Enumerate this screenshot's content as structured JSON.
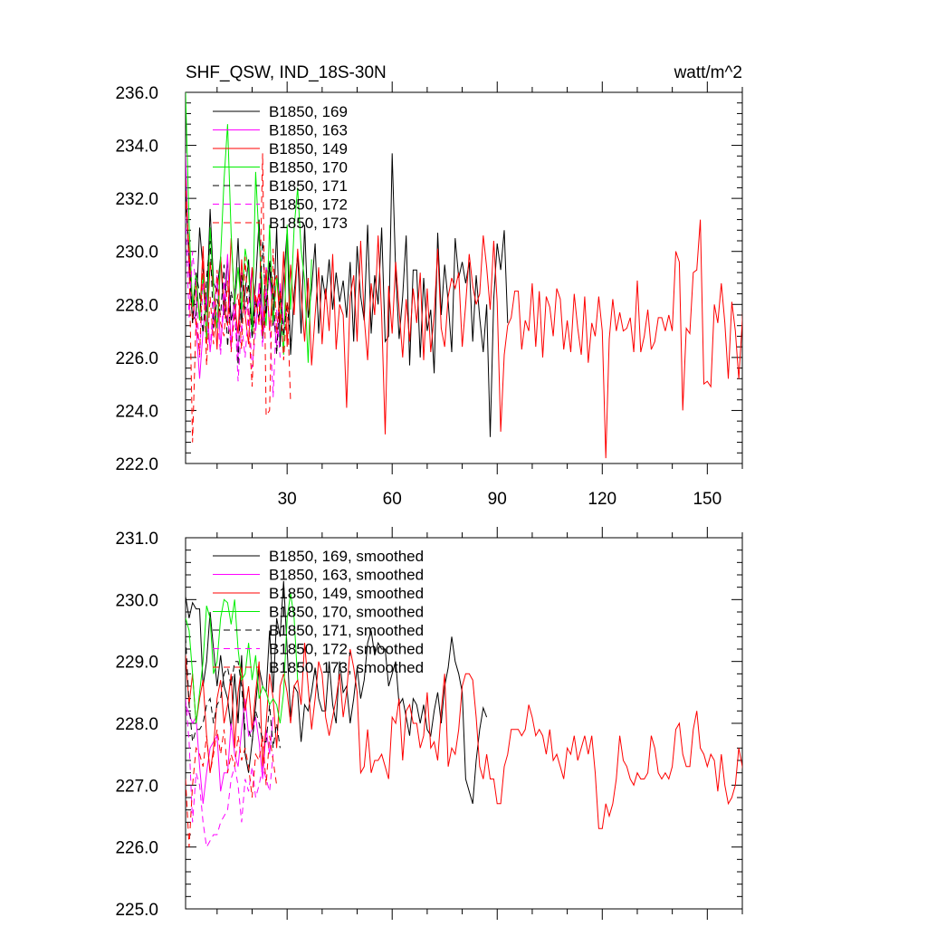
{
  "header": {
    "title": "SHF_QSW, IND_18S-30N",
    "units": "watt/m^2"
  },
  "colors": {
    "169": "#000000",
    "163": "#ff00ff",
    "149": "#ff0000",
    "170": "#00ee00",
    "171": "#000000",
    "172": "#ff00ff",
    "173": "#ff0000"
  },
  "chart_data": [
    {
      "type": "line",
      "title": "SHF_QSW, IND_18S-30N",
      "units": "watt/m^2",
      "xlabel": "",
      "ylabel": "",
      "xlim": [
        1,
        160
      ],
      "ylim": [
        222.0,
        236.0
      ],
      "x_ticks": [
        30,
        60,
        90,
        120,
        150
      ],
      "y_ticks": [
        222.0,
        224.0,
        226.0,
        228.0,
        230.0,
        232.0,
        234.0,
        236.0
      ],
      "y_tick_labels": [
        "222.0",
        "224.0",
        "226.0",
        "228.0",
        "230.0",
        "232.0",
        "234.0",
        "236.0"
      ],
      "grid": false,
      "legend": "top-left",
      "series": [
        {
          "name": "B1850, 169",
          "key": "169",
          "dash": false,
          "values": [
            232.4,
            229.5,
            227.4,
            227.6,
            230.9,
            229.3,
            227.7,
            231.6,
            228.8,
            228.5,
            229.8,
            227.6,
            229.7,
            227.4,
            228.0,
            230.5,
            227.3,
            228.5,
            229.7,
            226.9,
            228.8,
            231.2,
            226.7,
            228.0,
            229.5,
            227.2,
            230.9,
            226.4,
            228.9,
            230.8,
            226.1,
            228.4,
            229.9,
            226.9,
            231.0,
            227.5,
            228.6,
            230.3,
            226.9,
            229.1,
            228.2,
            229.7,
            227.8,
            229.2,
            228.1,
            228.9,
            227.5,
            229.6,
            226.6,
            230.2,
            228.3,
            227.4,
            231.0,
            226.9,
            229.1,
            228.0,
            230.9,
            226.6,
            226.8,
            233.7,
            229.2,
            226.7,
            228.3,
            230.6,
            225.7,
            229.3,
            229.3,
            226.0,
            229.0,
            227.0,
            227.8,
            225.4,
            230.7,
            227.6,
            229.5,
            228.1,
            226.2,
            230.5,
            229.0,
            229.6,
            228.8,
            229.6,
            226.6,
            229.1,
            227.5,
            226.2,
            228.0,
            223.0,
            228.2,
            230.3,
            229.3,
            230.8,
            227.3
          ]
        },
        {
          "name": "B1850, 163",
          "key": "163",
          "dash": false,
          "values": [
            233.7,
            229.1,
            228.3,
            227.2,
            225.2,
            227.0,
            228.3,
            226.2,
            227.5,
            229.1,
            226.4,
            228.0,
            229.9,
            226.3,
            228.6,
            226.0,
            229.2,
            227.6,
            228.1,
            229.4,
            227.0,
            228.8,
            227.4,
            229.4,
            228.9,
            227.8,
            226.4,
            228.8,
            227.2,
            228.0
          ]
        },
        {
          "name": "B1850, 149",
          "key": "149",
          "dash": false,
          "values": [
            232.0,
            230.1,
            227.3,
            228.9,
            227.4,
            230.2,
            226.5,
            229.6,
            228.5,
            226.3,
            229.8,
            228.0,
            227.2,
            230.5,
            228.0,
            226.9,
            229.7,
            227.6,
            226.5,
            229.4,
            227.9,
            228.4,
            226.8,
            229.3,
            227.0,
            228.7,
            229.1,
            227.3,
            230.0,
            226.4,
            229.5,
            227.6,
            230.1,
            228.4,
            226.6,
            229.0,
            225.7,
            227.6,
            229.4,
            226.5,
            228.6,
            227.0,
            229.9,
            226.3,
            228.0,
            227.6,
            224.1,
            228.3,
            229.1,
            226.6,
            230.4,
            227.5,
            225.9,
            228.8,
            227.6,
            230.6,
            227.6,
            223.1,
            228.7,
            226.9,
            229.6,
            227.8,
            226.0,
            228.2,
            226.6,
            228.6,
            227.3,
            229.2,
            225.9,
            228.6,
            226.2,
            227.6,
            230.1,
            227.1,
            226.4,
            228.3,
            229.0,
            228.6,
            229.2,
            226.4,
            228.0,
            229.9,
            228.7,
            228.0,
            228.4,
            230.6,
            229.4,
            227.8,
            230.4,
            228.1,
            223.2,
            226.1,
            227.2,
            227.5,
            228.5,
            228.5,
            226.3,
            227.4,
            227.0,
            228.8,
            226.4,
            228.5,
            226.0,
            228.3,
            227.9,
            226.8,
            228.6,
            228.2,
            226.3,
            227.4,
            226.2,
            228.4,
            227.1,
            226.1,
            228.3,
            225.8,
            227.3,
            226.8,
            228.3,
            227.0,
            222.2,
            226.7,
            228.2,
            227.0,
            227.7,
            227.0,
            227.1,
            227.5,
            226.2,
            228.9,
            226.2,
            226.8,
            227.8,
            226.3,
            226.6,
            227.5,
            227.5,
            227.0,
            227.6,
            227.0,
            230.0,
            229.6,
            224.0,
            227.1,
            226.9,
            229.2,
            229.3,
            231.2,
            225.0,
            225.1,
            224.9,
            228.0,
            227.3,
            228.8,
            227.3,
            225.2,
            228.1,
            227.0,
            225.2,
            227.4,
            230.0,
            226.4,
            224.7,
            228.4
          ]
        },
        {
          "name": "B1850, 170",
          "key": "170",
          "dash": false,
          "values": [
            236.0,
            231.0,
            227.9,
            229.2,
            227.4,
            229.1,
            226.7,
            230.9,
            228.5,
            227.1,
            229.8,
            232.7,
            234.8,
            230.7,
            228.0,
            229.4,
            227.8,
            230.1,
            229.3,
            226.8,
            233.0,
            230.4,
            228.5,
            227.2,
            231.0,
            227.3,
            229.0,
            228.1,
            226.1,
            231.0,
            227.8,
            230.9,
            232.4,
            230.1,
            228.9,
            225.8,
            229.7
          ]
        },
        {
          "name": "B1850, 171",
          "key": "171",
          "dash": true,
          "values": [
            232.4,
            229.8,
            227.3,
            229.2,
            228.4,
            226.9,
            229.0,
            230.4,
            227.1,
            228.2,
            227.6,
            229.5,
            226.4,
            228.5,
            227.8,
            225.7,
            229.1,
            227.8,
            228.8,
            226.7,
            228.2,
            227.4,
            230.4,
            227.6,
            229.7,
            228.4,
            226.1,
            228.5,
            226.8,
            228.1,
            226.6
          ]
        },
        {
          "name": "B1850, 172",
          "key": "172",
          "dash": true,
          "values": [
            231.3,
            227.5,
            230.0,
            228.6,
            226.0,
            228.8,
            227.3,
            226.3,
            228.2,
            227.6,
            226.1,
            228.9,
            227.4,
            226.5,
            228.0,
            225.1,
            227.3,
            226.0,
            227.9,
            225.6,
            227.0,
            228.3,
            226.4,
            228.6,
            227.4,
            224.5,
            227.8,
            226.0
          ]
        },
        {
          "name": "B1850, 173",
          "key": "173",
          "dash": true,
          "values": [
            232.7,
            229.5,
            222.8,
            227.5,
            226.1,
            229.9,
            225.7,
            228.3,
            226.5,
            229.3,
            227.3,
            226.8,
            228.9,
            226.2,
            227.7,
            228.4,
            226.3,
            229.8,
            227.3,
            224.9,
            228.4,
            227.2,
            233.7,
            223.8,
            224.0,
            230.1,
            226.9,
            228.5,
            225.9,
            228.1,
            224.3
          ]
        }
      ]
    },
    {
      "type": "line",
      "title": "",
      "xlabel": "",
      "ylabel": "",
      "xlim": [
        1,
        160
      ],
      "ylim": [
        225.0,
        231.0
      ],
      "x_ticks": [
        30,
        60,
        90,
        120,
        150
      ],
      "y_ticks": [
        225.0,
        226.0,
        227.0,
        228.0,
        229.0,
        230.0,
        231.0
      ],
      "y_tick_labels": [
        "225.0",
        "226.0",
        "227.0",
        "228.0",
        "229.0",
        "230.0",
        "231.0"
      ],
      "grid": false,
      "legend": "top-left",
      "series": [
        {
          "name": "B1850, 169, smoothed",
          "key": "169",
          "dash": false,
          "values": [
            230.05,
            229.7,
            229.95,
            229.85,
            229.85,
            228.6,
            229.0,
            229.8,
            229.2,
            228.6,
            229.1,
            228.6,
            228.4,
            227.9,
            228.8,
            228.0,
            229.1,
            227.5,
            227.2,
            227.7,
            228.3,
            228.9,
            228.6,
            228.5,
            229.5,
            228.5,
            229.7,
            229.4,
            230.3,
            229.2,
            228.1,
            228.6,
            228.5,
            227.7,
            228.3,
            228.2,
            228.5,
            228.9,
            228.4,
            228.2,
            228.2,
            229.0,
            228.3,
            228.0,
            229.0,
            228.5,
            228.6,
            228.0,
            228.4,
            228.9,
            228.4,
            228.7,
            229.3,
            229.5,
            229.1,
            229.3,
            229.2,
            229.2,
            228.6,
            228.8,
            229.0,
            228.3,
            228.4,
            228.1,
            227.8,
            228.4,
            228.3,
            228.0,
            228.3,
            227.9,
            227.8,
            228.2,
            228.5,
            228.0,
            228.6,
            228.9,
            229.4,
            229.0,
            228.8,
            228.5,
            227.1,
            226.9,
            226.7,
            227.4,
            227.9,
            228.25,
            228.1
          ]
        },
        {
          "name": "B1850, 163, smoothed",
          "key": "163",
          "dash": false,
          "values": [
            228.3,
            228.15,
            228.0,
            228.1,
            227.3,
            226.7,
            227.2,
            227.6,
            227.7,
            227.8,
            226.9,
            227.2,
            227.2,
            228.0,
            227.5,
            227.3,
            227.9,
            228.4,
            227.8,
            227.9,
            228.1,
            227.7,
            227.1,
            227.9,
            227.5,
            228.1
          ]
        },
        {
          "name": "B1850, 149, smoothed",
          "key": "149",
          "dash": false,
          "values": [
            229.1,
            228.3,
            228.8,
            228.0,
            228.4,
            228.7,
            227.8,
            227.2,
            227.6,
            228.4,
            228.7,
            228.0,
            228.3,
            228.8,
            227.6,
            228.5,
            228.9,
            228.2,
            228.6,
            227.9,
            228.5,
            229.0,
            227.3,
            228.0,
            228.8,
            228.4,
            227.6,
            228.6,
            228.8,
            228.5,
            228.0,
            228.6,
            228.7,
            228.3,
            229.3,
            228.6,
            227.9,
            228.4,
            229.0,
            228.8,
            228.1,
            227.8,
            228.1,
            228.4,
            228.8,
            228.1,
            228.5,
            229.2,
            228.9,
            228.5,
            227.2,
            227.3,
            227.9,
            227.2,
            227.4,
            227.4,
            227.5,
            227.3,
            227.1,
            228.1,
            228.0,
            228.4,
            227.4,
            228.2,
            228.3,
            228.0,
            228.0,
            227.6,
            227.8,
            228.5,
            227.6,
            227.7,
            227.4,
            228.2,
            228.8,
            227.3,
            227.6,
            227.5,
            227.9,
            228.6,
            228.8,
            228.8,
            228.7,
            228.1,
            227.3,
            227.1,
            227.5,
            227.1,
            227.1,
            226.7,
            226.7,
            227.3,
            227.5,
            227.9,
            227.9,
            227.9,
            227.8,
            227.9,
            228.3,
            228.1,
            227.8,
            227.9,
            227.8,
            227.5,
            227.9,
            227.4,
            227.5,
            227.3,
            227.1,
            227.6,
            227.5,
            227.8,
            227.4,
            227.6,
            227.8,
            227.5,
            227.8,
            227.2,
            226.3,
            226.3,
            226.7,
            226.5,
            226.7,
            227.1,
            227.8,
            227.4,
            227.3,
            227.1,
            227.0,
            227.2,
            227.1,
            227.1,
            227.2,
            227.8,
            227.6,
            227.2,
            227.1,
            227.2,
            227.1,
            227.3,
            227.9,
            228.0,
            227.5,
            227.3,
            227.3,
            227.9,
            228.2,
            227.6,
            227.5,
            227.3,
            227.5,
            227.4,
            226.9,
            227.5,
            227.0,
            226.7,
            226.8,
            227.0,
            227.6,
            227.3,
            226.9,
            226.8
          ]
        },
        {
          "name": "B1850, 170, smoothed",
          "key": "170",
          "dash": false,
          "values": [
            229.7,
            229.5,
            228.8,
            228.0,
            228.5,
            229.0,
            229.9,
            229.7,
            228.8,
            229.0,
            229.7,
            230.0,
            229.95,
            229.6,
            230.0,
            229.2,
            228.7,
            228.8,
            229.3,
            228.7,
            229.1,
            228.4,
            228.6,
            228.5,
            228.3,
            228.4,
            228.3,
            228.0,
            228.5,
            229.7,
            230.1,
            229.7,
            228.7
          ]
        },
        {
          "name": "B1850, 171, smoothed",
          "key": "171",
          "dash": true,
          "values": [
            229.4,
            228.3,
            227.7,
            227.9,
            227.9,
            228.0,
            228.3,
            228.4,
            228.0,
            228.3,
            228.4,
            228.8,
            228.9,
            228.6,
            229.0,
            229.0,
            228.6,
            227.9,
            227.9,
            227.7,
            228.2,
            228.0,
            227.7,
            227.7,
            228.3,
            227.6,
            228.0,
            227.6
          ]
        },
        {
          "name": "B1850, 172, smoothed",
          "key": "172",
          "dash": true,
          "values": [
            228.4,
            227.7,
            226.4,
            227.2,
            227.0,
            226.4,
            226.0,
            226.1,
            226.2,
            226.2,
            226.4,
            226.5,
            226.6,
            227.1,
            227.3,
            227.0,
            226.4,
            227.1,
            226.9,
            227.3,
            226.8,
            227.0,
            227.3,
            227.1,
            226.9,
            227.5
          ]
        },
        {
          "name": "B1850, 173, smoothed",
          "key": "173",
          "dash": true,
          "values": [
            227.1,
            226.0,
            227.0,
            227.6,
            227.5,
            227.3,
            227.8,
            227.2,
            227.5,
            227.9,
            227.5,
            227.9,
            227.2,
            227.5,
            227.3,
            227.8,
            227.4,
            227.6,
            227.3,
            226.8,
            227.5,
            227.4,
            227.8,
            227.0,
            227.8,
            227.4,
            227.0
          ]
        }
      ]
    }
  ]
}
